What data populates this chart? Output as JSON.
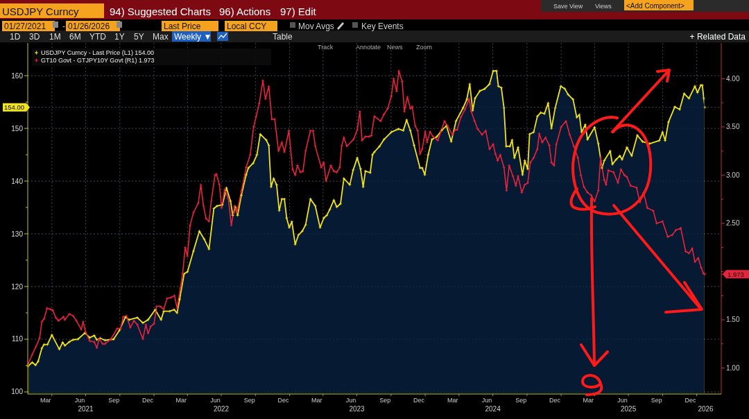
{
  "chart_data": {
    "type": "line",
    "marker": "cross",
    "grid": true,
    "legend": "top left",
    "xlim": [
      "2021-01-26",
      "2026-03-08"
    ],
    "x2lim": [
      "2021-01-26",
      "2026-03-08"
    ],
    "xticks": [
      {
        "value": "2021-03-15",
        "label": "Mar"
      },
      {
        "value": "2021-06-15",
        "label": "Jun"
      },
      {
        "value": "2021-09-15",
        "label": "Sep"
      },
      {
        "value": "2021-12-15",
        "label": "Dec"
      },
      {
        "value": "2022-03-15",
        "label": "Mar"
      },
      {
        "value": "2022-06-15",
        "label": "Jun"
      },
      {
        "value": "2022-09-15",
        "label": "Sep"
      },
      {
        "value": "2022-12-15",
        "label": "Dec"
      },
      {
        "value": "2023-03-15",
        "label": "Mar"
      },
      {
        "value": "2023-06-15",
        "label": "Jun"
      },
      {
        "value": "2023-09-15",
        "label": "Sep"
      },
      {
        "value": "2023-12-15",
        "label": "Dec"
      },
      {
        "value": "2024-03-15",
        "label": "Mar"
      },
      {
        "value": "2024-06-15",
        "label": "Jun"
      },
      {
        "value": "2024-09-15",
        "label": "Sep"
      },
      {
        "value": "2024-12-15",
        "label": "Dec"
      },
      {
        "value": "2025-03-15",
        "label": "Mar"
      },
      {
        "value": "2025-06-15",
        "label": "Jun"
      },
      {
        "value": "2025-09-15",
        "label": "Sep"
      },
      {
        "value": "2025-12-15",
        "label": "Dec"
      },
      {
        "value": "2021-04-01",
        "label": null
      },
      {
        "value": "2021-07-01",
        "label": null
      },
      {
        "value": "2021-10-01",
        "label": null
      },
      {
        "value": "2022-01-01",
        "label": null
      },
      {
        "value": "2022-04-01",
        "label": null
      },
      {
        "value": "2022-07-01",
        "label": null
      },
      {
        "value": "2022-10-01",
        "label": null
      },
      {
        "value": "2023-01-01",
        "label": null
      },
      {
        "value": "2023-04-01",
        "label": null
      },
      {
        "value": "2023-07-01",
        "label": null
      },
      {
        "value": "2023-10-01",
        "label": null
      },
      {
        "value": "2024-01-01",
        "label": null
      },
      {
        "value": "2024-04-01",
        "label": null
      },
      {
        "value": "2024-07-01",
        "label": null
      },
      {
        "value": "2024-10-01",
        "label": null
      },
      {
        "value": "2025-01-01",
        "label": null
      },
      {
        "value": "2025-04-01",
        "label": null
      },
      {
        "value": "2025-07-01",
        "label": null
      },
      {
        "value": "2025-10-01",
        "label": null
      },
      {
        "value": "2026-01-01",
        "label": null
      }
    ],
    "x2ticks": [
      {
        "value": "2021-07-01",
        "label": "2021"
      },
      {
        "value": "2022-07-01",
        "label": "2022"
      },
      {
        "value": "2023-07-01",
        "label": "2023"
      },
      {
        "value": "2024-07-01",
        "label": "2024"
      },
      {
        "value": "2025-07-01",
        "label": "2025"
      },
      {
        "value": "2026-01-25",
        "label": "2026"
      }
    ],
    "ylim": [
      99.6,
      166.2
    ],
    "yticks": [
      100,
      110,
      120,
      130,
      140,
      150,
      160,
      {
        "value": 105,
        "label": null
      },
      {
        "value": 115,
        "label": null
      },
      {
        "value": 125,
        "label": null
      },
      {
        "value": 135,
        "label": null
      },
      {
        "value": 145,
        "label": null
      },
      {
        "value": 155,
        "label": null
      },
      {
        "value": 154.0,
        "label": "154.00"
      }
    ],
    "y2lim": [
      0.73,
      4.37
    ],
    "y2ticks": [
      {
        "value": 1,
        "label": "1.00"
      },
      {
        "value": 1.5,
        "label": "1.50"
      },
      {
        "value": 2,
        "label": null
      },
      {
        "value": 2.5,
        "label": "2.50"
      },
      {
        "value": 3,
        "label": "3.00"
      },
      {
        "value": 3.5,
        "label": "3.50"
      },
      {
        "value": 4,
        "label": "4.00"
      },
      {
        "value": 1.25,
        "label": null
      },
      {
        "value": 1.75,
        "label": null
      },
      {
        "value": 2.25,
        "label": null
      },
      {
        "value": 2.75,
        "label": null
      },
      {
        "value": 3.25,
        "label": null
      },
      {
        "value": 3.75,
        "label": null
      },
      {
        "value": 1.973,
        "label": "1.973"
      }
    ],
    "annotations": [
      "USDJPY Curncy",
      "94) Suggested Charts",
      "96) Actions",
      "97) Edit",
      "Save View",
      "Views",
      "<Add Component>",
      "01/27/2021",
      "-",
      "01/26/2026",
      "Last Price",
      "Local CCY",
      "Mov Avgs",
      "Key Events",
      "1D",
      "3D",
      "1M",
      "6M",
      "YTD",
      "1Y",
      "5Y",
      "Max",
      "Weekly ▼",
      "Table",
      "+ Related Data",
      "Track",
      "Annotate",
      "News",
      "Zoom"
    ],
    "series": [
      {
        "name": "USDJPY Curncy - Last Price (L1) 154.00",
        "type": "area",
        "color": "#f2e41c",
        "x": [
          "2021-01-27",
          "2021-02-07",
          "2021-02-16",
          "2021-02-23",
          "2021-03-05",
          "2021-03-11",
          "2021-03-20",
          "2021-04-01",
          "2021-04-21",
          "2021-04-30",
          "2021-05-06",
          "2021-05-18",
          "2021-05-28",
          "2021-06-10",
          "2021-06-29",
          "2021-07-12",
          "2021-07-24",
          "2021-07-31",
          "2021-08-09",
          "2021-08-22",
          "2021-09-14",
          "2021-09-30",
          "2021-10-16",
          "2021-10-26",
          "2021-11-17",
          "2021-12-02",
          "2021-12-16",
          "2022-01-04",
          "2022-01-20",
          "2022-01-27",
          "2022-02-12",
          "2022-02-24",
          "2022-03-04",
          "2022-03-11",
          "2022-03-23",
          "2022-04-01",
          "2022-04-17",
          "2022-05-03",
          "2022-05-16",
          "2022-05-29",
          "2022-06-11",
          "2022-06-20",
          "2022-07-04",
          "2022-07-15",
          "2022-07-26",
          "2022-08-01",
          "2022-08-08",
          "2022-08-14",
          "2022-08-24",
          "2022-09-06",
          "2022-09-12",
          "2022-09-25",
          "2022-10-05",
          "2022-10-14",
          "2022-10-30",
          "2022-11-06",
          "2022-11-12",
          "2022-11-19",
          "2022-11-27",
          "2022-12-04",
          "2022-12-11",
          "2022-12-18",
          "2022-12-24",
          "2022-12-31",
          "2023-01-07",
          "2023-01-16",
          "2023-01-25",
          "2023-02-04",
          "2023-02-13",
          "2023-02-26",
          "2023-03-11",
          "2023-03-24",
          "2023-04-03",
          "2023-04-11",
          "2023-04-19",
          "2023-04-30",
          "2023-05-08",
          "2023-05-18",
          "2023-05-27",
          "2023-06-12",
          "2023-06-21",
          "2023-07-02",
          "2023-07-11",
          "2023-07-18",
          "2023-07-24",
          "2023-08-06",
          "2023-08-12",
          "2023-08-17",
          "2023-08-31",
          "2023-09-12",
          "2023-10-02",
          "2023-10-21",
          "2023-11-03",
          "2023-11-12",
          "2023-11-22",
          "2023-12-02",
          "2023-12-18",
          "2023-12-24",
          "2023-12-31",
          "2024-01-09",
          "2024-01-19",
          "2024-02-01",
          "2024-02-14",
          "2024-02-27",
          "2024-03-11",
          "2024-03-24",
          "2024-04-12",
          "2024-04-22",
          "2024-04-30",
          "2024-05-08",
          "2024-05-14",
          "2024-05-27",
          "2024-06-09",
          "2024-06-22",
          "2024-07-02",
          "2024-07-11",
          "2024-07-16",
          "2024-07-24",
          "2024-07-31",
          "2024-08-06",
          "2024-08-16",
          "2024-08-22",
          "2024-08-28",
          "2024-09-07",
          "2024-09-19",
          "2024-09-25",
          "2024-10-03",
          "2024-10-08",
          "2024-10-19",
          "2024-10-29",
          "2024-11-07",
          "2024-11-17",
          "2024-11-27",
          "2024-12-06",
          "2024-12-16",
          "2024-12-31",
          "2025-01-11",
          "2025-01-20",
          "2025-02-02",
          "2025-02-12",
          "2025-02-19",
          "2025-02-25",
          "2025-03-07",
          "2025-03-13",
          "2025-04-01",
          "2025-04-11",
          "2025-04-21",
          "2025-04-27",
          "2025-05-13",
          "2025-05-19",
          "2025-05-29",
          "2025-06-08",
          "2025-06-14",
          "2025-06-27",
          "2025-07-10",
          "2025-07-25",
          "2025-08-08",
          "2025-08-27",
          "2025-09-22",
          "2025-10-01",
          "2025-10-08",
          "2025-10-17",
          "2025-11-03",
          "2025-11-16",
          "2025-11-28",
          "2025-12-11",
          "2025-12-27",
          "2026-01-03",
          "2026-01-12",
          "2026-01-16",
          "2026-01-20",
          "2026-01-23"
        ],
        "values": [
          104.9,
          105.6,
          105.1,
          105.8,
          108.3,
          109.0,
          109.0,
          110.8,
          108.1,
          109.4,
          108.8,
          109.5,
          109.9,
          110.0,
          111.2,
          110.3,
          110.7,
          109.9,
          110.2,
          109.8,
          110.0,
          111.7,
          114.2,
          113.7,
          114.1,
          113.1,
          113.7,
          115.6,
          113.7,
          115.3,
          115.3,
          115.6,
          115.0,
          117.6,
          122.4,
          122.8,
          126.7,
          130.5,
          129.0,
          127.1,
          134.8,
          135.3,
          135.5,
          138.7,
          136.2,
          133.5,
          135.1,
          133.5,
          137.3,
          141.2,
          142.5,
          143.4,
          145.0,
          148.9,
          147.8,
          146.8,
          138.9,
          140.5,
          139.3,
          134.4,
          136.6,
          136.6,
          133.0,
          131.2,
          132.3,
          128.0,
          129.8,
          130.5,
          131.7,
          136.6,
          135.3,
          131.2,
          133.0,
          133.5,
          134.6,
          136.4,
          135.1,
          135.7,
          140.5,
          139.3,
          142.1,
          144.4,
          142.3,
          138.9,
          141.9,
          141.6,
          145.0,
          145.5,
          146.6,
          147.9,
          149.3,
          149.9,
          149.6,
          151.6,
          149.6,
          146.8,
          142.5,
          142.5,
          141.2,
          145.0,
          147.9,
          148.4,
          149.6,
          150.5,
          147.5,
          151.4,
          153.9,
          155.5,
          158.4,
          153.4,
          155.7,
          157.1,
          157.5,
          158.4,
          160.9,
          160.9,
          158.0,
          157.7,
          153.9,
          146.6,
          146.6,
          147.8,
          144.4,
          146.4,
          141.2,
          143.9,
          142.3,
          148.9,
          149.3,
          152.3,
          153.0,
          152.8,
          154.8,
          150.0,
          153.9,
          158.0,
          157.5,
          156.4,
          155.5,
          152.1,
          152.6,
          149.3,
          150.7,
          147.9,
          150.2,
          147.1,
          142.5,
          143.9,
          145.7,
          143.2,
          144.1,
          144.8,
          144.1,
          146.4,
          144.8,
          148.7,
          147.5,
          147.1,
          147.7,
          149.3,
          147.7,
          151.2,
          154.1,
          153.6,
          156.6,
          155.7,
          158.0,
          156.8,
          158.2,
          158.2,
          155.7,
          154.0
        ]
      },
      {
        "name": "GT10 Govt - GTJPY10Y Govt (R1) 1.973",
        "axis": "y2",
        "color": "#e8243c",
        "x": [
          "2021-01-27",
          "2021-02-07",
          "2021-02-17",
          "2021-02-27",
          "2021-03-05",
          "2021-03-11",
          "2021-03-19",
          "2021-03-27",
          "2021-04-03",
          "2021-04-12",
          "2021-04-19",
          "2021-05-02",
          "2021-05-06",
          "2021-05-18",
          "2021-05-28",
          "2021-06-06",
          "2021-06-19",
          "2021-06-24",
          "2021-07-01",
          "2021-07-12",
          "2021-07-24",
          "2021-07-31",
          "2021-08-06",
          "2021-08-16",
          "2021-08-22",
          "2021-09-07",
          "2021-09-24",
          "2021-10-03",
          "2021-10-10",
          "2021-10-19",
          "2021-10-29",
          "2021-11-08",
          "2021-11-17",
          "2021-12-02",
          "2021-12-10",
          "2021-12-16",
          "2021-12-23",
          "2022-01-01",
          "2022-01-08",
          "2022-01-17",
          "2022-01-27",
          "2022-02-05",
          "2022-02-15",
          "2022-02-25",
          "2022-03-04",
          "2022-03-13",
          "2022-03-19",
          "2022-03-26",
          "2022-04-01",
          "2022-04-08",
          "2022-04-17",
          "2022-04-30",
          "2022-05-07",
          "2022-05-14",
          "2022-05-21",
          "2022-05-29",
          "2022-06-04",
          "2022-06-14",
          "2022-06-18",
          "2022-06-26",
          "2022-07-02",
          "2022-07-10",
          "2022-07-20",
          "2022-07-28",
          "2022-08-06",
          "2022-08-12",
          "2022-08-24",
          "2022-09-06",
          "2022-09-17",
          "2022-09-26",
          "2022-10-03",
          "2022-10-11",
          "2022-10-21",
          "2022-10-28",
          "2022-11-06",
          "2022-11-14",
          "2022-11-22",
          "2022-12-02",
          "2022-12-11",
          "2022-12-18",
          "2022-12-30",
          "2023-01-09",
          "2023-01-16",
          "2023-01-22",
          "2023-01-30",
          "2023-02-06",
          "2023-02-13",
          "2023-02-26",
          "2023-03-05",
          "2023-03-11",
          "2023-03-27",
          "2023-04-03",
          "2023-04-09",
          "2023-04-22",
          "2023-04-30",
          "2023-05-08",
          "2023-05-16",
          "2023-05-21",
          "2023-05-27",
          "2023-06-04",
          "2023-06-22",
          "2023-07-02",
          "2023-07-09",
          "2023-07-15",
          "2023-07-24",
          "2023-08-03",
          "2023-08-09",
          "2023-08-17",
          "2023-09-03",
          "2023-09-12",
          "2023-09-22",
          "2023-10-02",
          "2023-10-08",
          "2023-10-16",
          "2023-10-22",
          "2023-10-31",
          "2023-11-06",
          "2023-11-14",
          "2023-11-22",
          "2023-11-27",
          "2023-12-05",
          "2023-12-12",
          "2023-12-18",
          "2023-12-24",
          "2024-01-01",
          "2024-01-06",
          "2024-01-14",
          "2024-01-22",
          "2024-02-04",
          "2024-02-12",
          "2024-02-22",
          "2024-03-01",
          "2024-03-14",
          "2024-03-22",
          "2024-03-27",
          "2024-04-06",
          "2024-04-17",
          "2024-04-28",
          "2024-05-04",
          "2024-05-13",
          "2024-05-21",
          "2024-06-02",
          "2024-06-12",
          "2024-06-22",
          "2024-07-02",
          "2024-07-08",
          "2024-07-14",
          "2024-07-21",
          "2024-07-31",
          "2024-08-07",
          "2024-08-14",
          "2024-08-24",
          "2024-09-01",
          "2024-09-07",
          "2024-09-17",
          "2024-09-25",
          "2024-10-03",
          "2024-10-10",
          "2024-10-19",
          "2024-10-29",
          "2024-11-03",
          "2024-11-11",
          "2024-11-20",
          "2024-11-30",
          "2024-12-06",
          "2024-12-13",
          "2024-12-19",
          "2025-01-01",
          "2025-01-14",
          "2025-01-24",
          "2025-02-04",
          "2025-02-15",
          "2025-02-23",
          "2025-03-03",
          "2025-03-13",
          "2025-03-23",
          "2025-04-01",
          "2025-04-11",
          "2025-04-17",
          "2025-04-27",
          "2025-05-02",
          "2025-05-08",
          "2025-05-22",
          "2025-06-03",
          "2025-06-11",
          "2025-06-20",
          "2025-06-27",
          "2025-07-07",
          "2025-07-23",
          "2025-08-01",
          "2025-08-11",
          "2025-08-21",
          "2025-09-06",
          "2025-09-15",
          "2025-10-01",
          "2025-10-15",
          "2025-10-27",
          "2025-11-06",
          "2025-11-19",
          "2025-12-02",
          "2025-12-11",
          "2025-12-20",
          "2025-12-27",
          "2026-01-05",
          "2026-01-13",
          "2026-01-19",
          "2026-01-23"
        ],
        "values": [
          1.04,
          1.14,
          1.22,
          1.31,
          1.48,
          1.51,
          1.62,
          1.61,
          1.6,
          1.52,
          1.49,
          1.53,
          1.5,
          1.56,
          1.54,
          1.49,
          1.4,
          1.48,
          1.37,
          1.28,
          1.27,
          1.21,
          1.3,
          1.25,
          1.25,
          1.3,
          1.41,
          1.41,
          1.53,
          1.54,
          1.42,
          1.49,
          1.45,
          1.3,
          1.45,
          1.36,
          1.43,
          1.46,
          1.64,
          1.64,
          1.61,
          1.72,
          1.73,
          1.75,
          1.62,
          1.83,
          1.98,
          2.25,
          2.16,
          2.48,
          2.61,
          2.71,
          2.9,
          2.68,
          2.55,
          2.52,
          2.73,
          3.0,
          3.01,
          2.9,
          2.66,
          2.85,
          2.76,
          2.48,
          2.68,
          2.61,
          2.83,
          3.08,
          3.21,
          3.5,
          3.61,
          3.74,
          3.98,
          3.79,
          3.92,
          3.58,
          3.58,
          3.25,
          3.34,
          3.24,
          3.46,
          3.06,
          3.0,
          3.1,
          3.03,
          3.04,
          3.25,
          3.46,
          3.46,
          3.3,
          3.08,
          3.13,
          2.94,
          3.1,
          3.04,
          3.03,
          3.08,
          3.3,
          3.39,
          3.3,
          3.37,
          3.47,
          3.66,
          3.36,
          3.4,
          3.4,
          3.41,
          3.61,
          3.56,
          3.63,
          3.69,
          3.82,
          4.0,
          3.87,
          4.08,
          3.97,
          3.66,
          3.81,
          3.69,
          3.71,
          3.51,
          3.46,
          3.22,
          3.27,
          3.45,
          3.34,
          3.45,
          3.4,
          3.36,
          3.45,
          3.56,
          3.51,
          3.42,
          3.47,
          3.47,
          3.6,
          3.68,
          3.79,
          3.66,
          3.56,
          3.48,
          3.42,
          3.46,
          3.27,
          3.32,
          3.22,
          3.15,
          3.21,
          3.08,
          2.84,
          3.1,
          2.99,
          2.89,
          2.99,
          2.82,
          2.9,
          2.92,
          3.13,
          3.18,
          3.27,
          3.43,
          3.34,
          3.39,
          3.31,
          3.13,
          3.1,
          3.32,
          3.5,
          3.56,
          3.42,
          3.3,
          3.18,
          3.0,
          2.88,
          2.82,
          2.79,
          2.73,
          2.84,
          3.18,
          2.95,
          2.9,
          3.05,
          3.03,
          2.92,
          3.06,
          3.0,
          2.98,
          2.89,
          2.87,
          2.72,
          2.82,
          2.66,
          2.63,
          2.5,
          2.52,
          2.36,
          2.38,
          2.43,
          2.45,
          2.21,
          2.19,
          2.24,
          2.1,
          2.14,
          2.04,
          1.98,
          1.973
        ]
      }
    ]
  }
}
